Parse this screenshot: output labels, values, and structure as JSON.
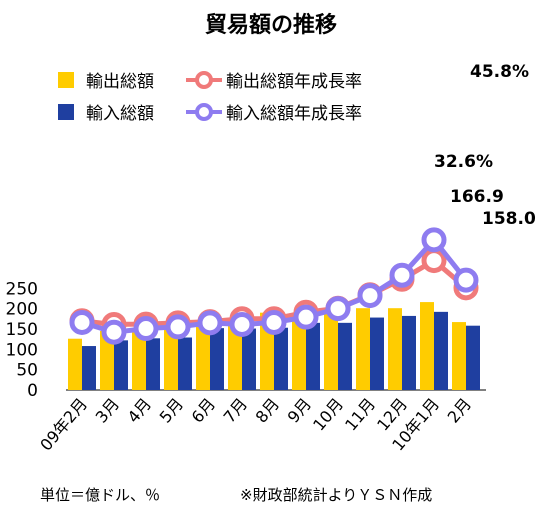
{
  "chart_data": {
    "type": "bar",
    "title": "貿易額の推移",
    "categories": [
      "09年2月",
      "3月",
      "4月",
      "5月",
      "6月",
      "7月",
      "8月",
      "9月",
      "10月",
      "11月",
      "12月",
      "10年1月",
      "2月"
    ],
    "ylim": [
      0,
      250
    ],
    "yticks": [
      0,
      50,
      100,
      150,
      200,
      250
    ],
    "series": [
      {
        "name": "輸出総額",
        "kind": "bar",
        "color": "#ffcc00",
        "values": [
          126,
          145,
          152,
          157,
          164,
          159,
          190,
          190,
          190,
          201,
          201,
          216,
          166.9
        ]
      },
      {
        "name": "輸入総額",
        "kind": "bar",
        "color": "#1f3fa0",
        "values": [
          108,
          122,
          127,
          129,
          152,
          151,
          153,
          165,
          165,
          178,
          182,
          192,
          158.0
        ]
      },
      {
        "name": "輸出総額年成長率",
        "kind": "line",
        "color": "#f07a7a",
        "values": [
          170,
          161,
          162,
          165,
          168,
          175,
          175,
          191,
          201,
          234,
          272,
          318,
          251
        ]
      },
      {
        "name": "輸入総額年成長率",
        "kind": "line",
        "color": "#8e7cf0",
        "values": [
          166,
          142,
          151,
          155,
          165,
          161,
          166,
          179,
          200,
          232,
          282,
          369,
          270
        ]
      }
    ],
    "annotations": [
      "45.8%",
      "32.6%",
      "166.9",
      "158.0"
    ],
    "grid": false,
    "legend_position": "top-left"
  },
  "footer": {
    "unit_note": "単位＝億ドル、％",
    "source_note": "※財政部統計よりＹＳＮ作成"
  }
}
